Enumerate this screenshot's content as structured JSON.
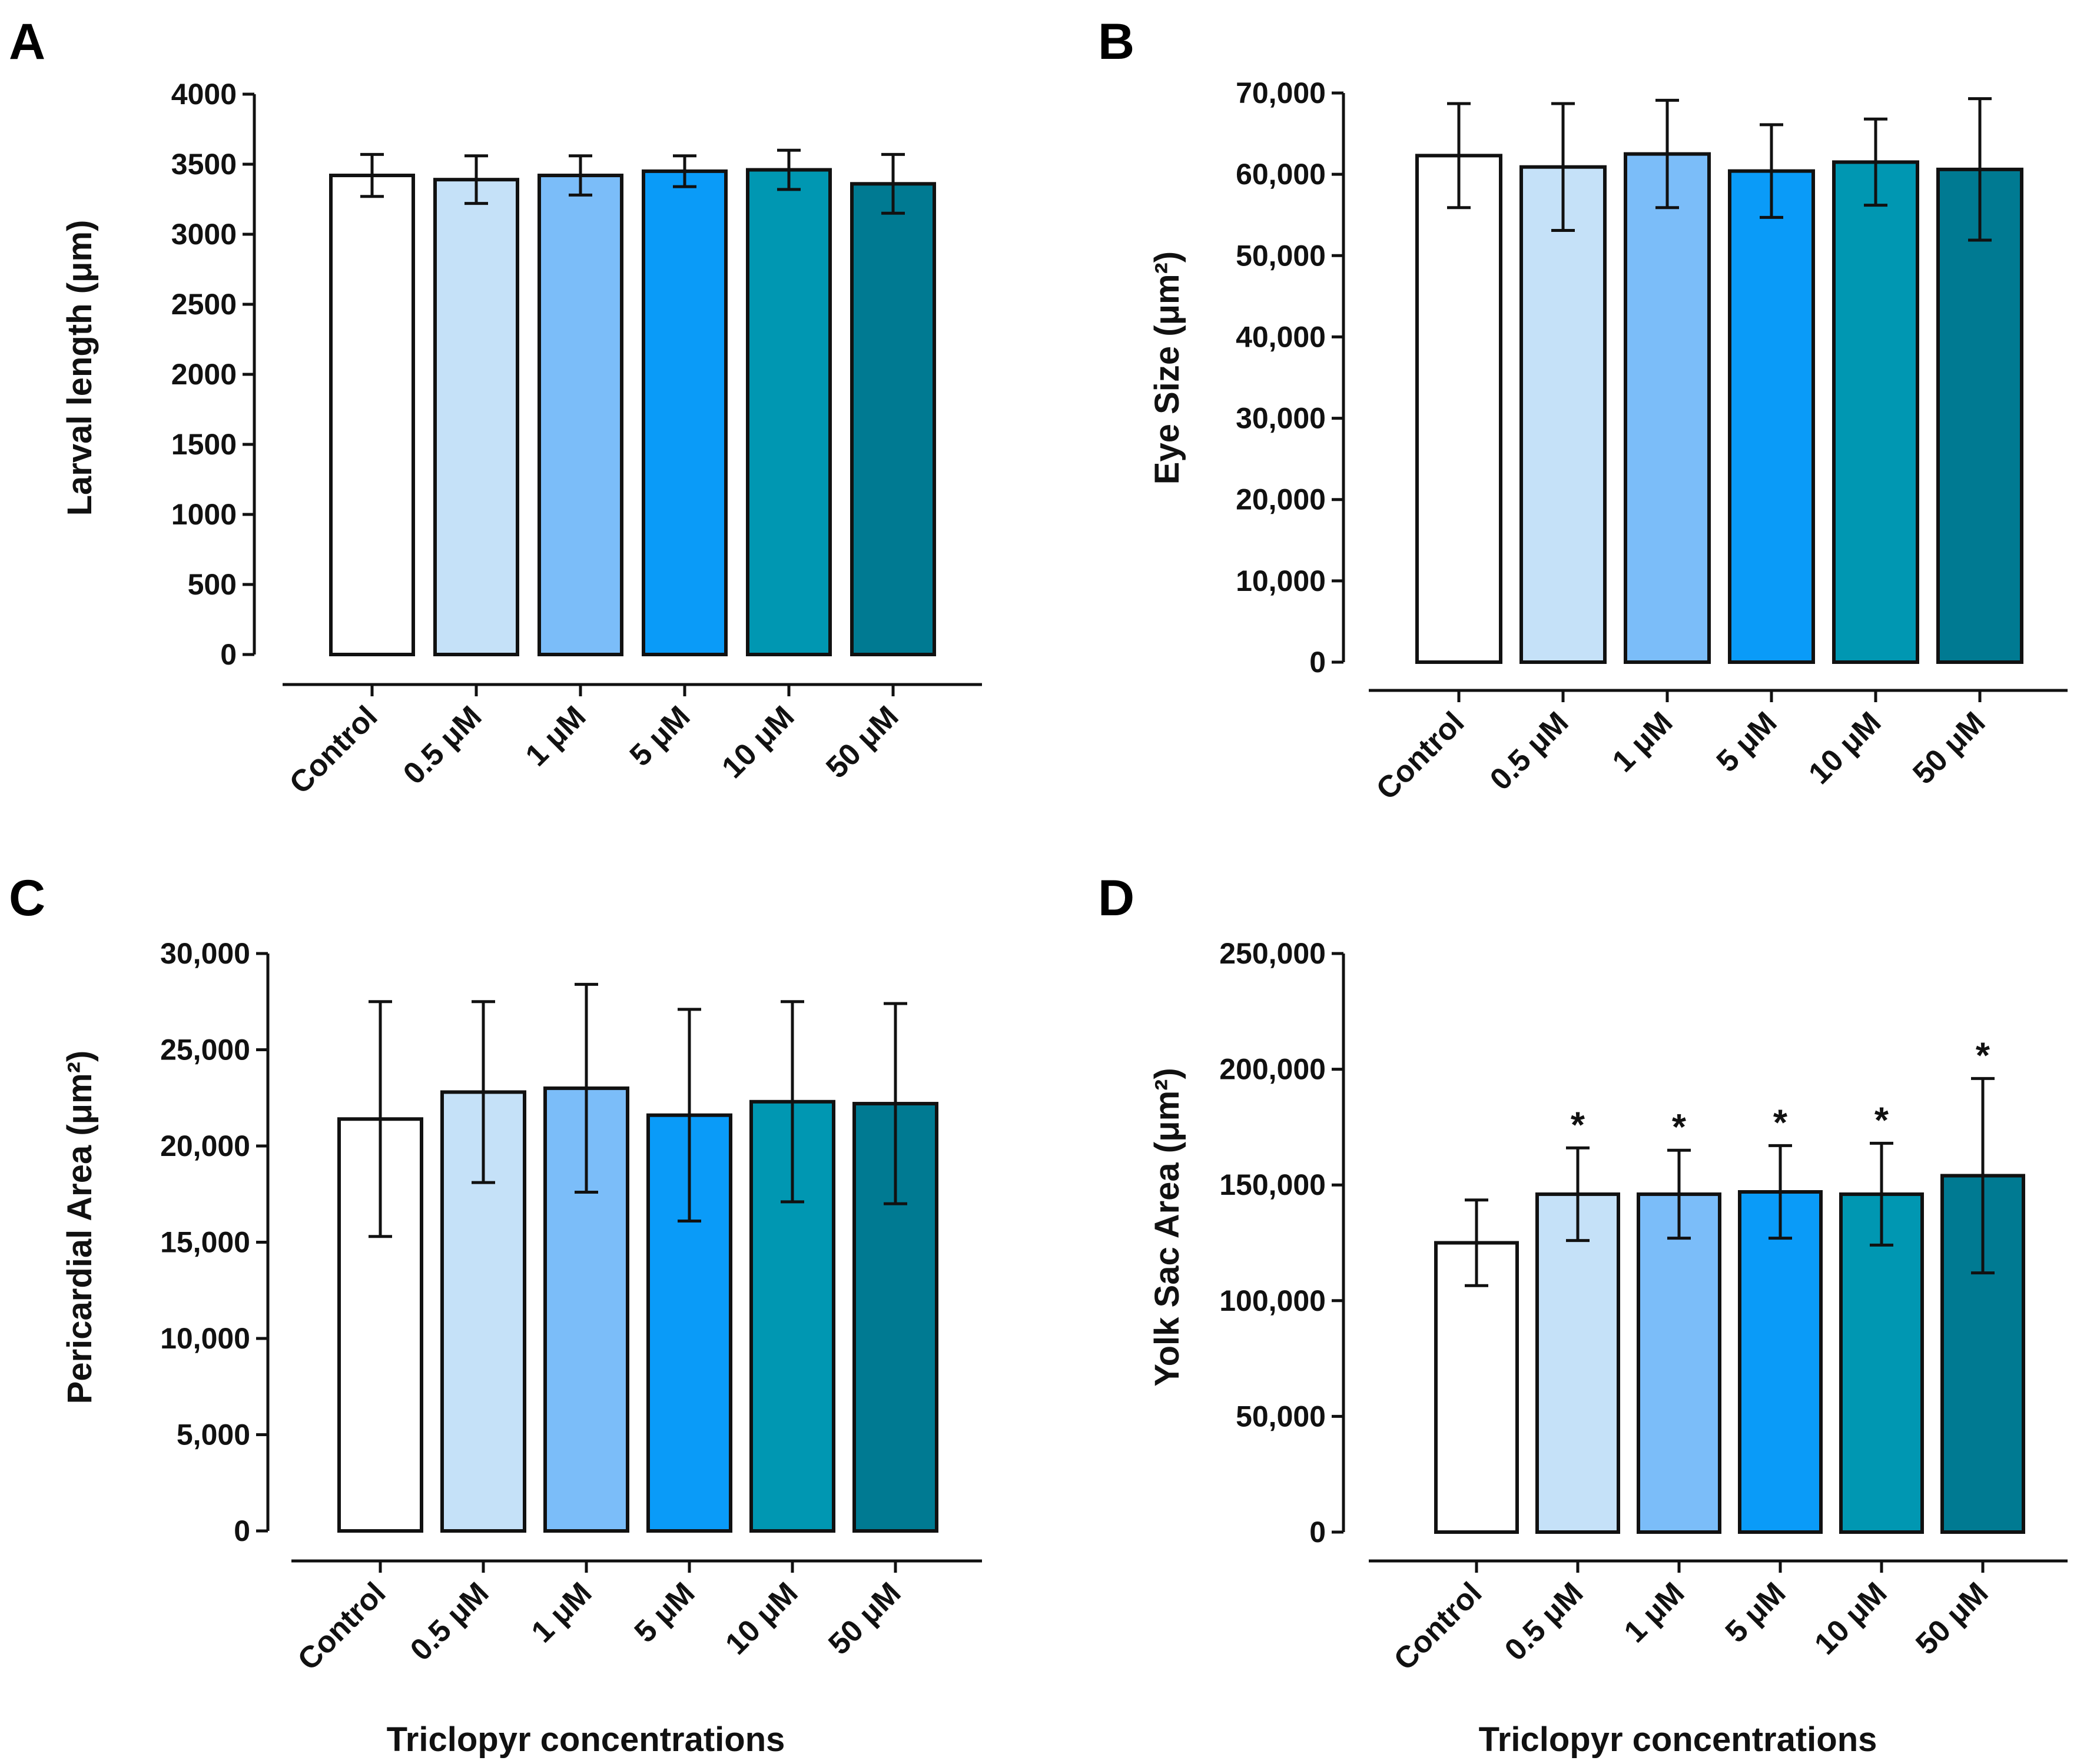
{
  "figure": {
    "x_title": "Triclopyr concentrations",
    "categories": [
      "Control",
      "0.5 μM",
      "1 μM",
      "5 μM",
      "10 μM",
      "50 μM"
    ],
    "colors": [
      "#ffffff",
      "#c5e1f8",
      "#7bbdf9",
      "#0a9bf8",
      "#0097b2",
      "#007a92"
    ]
  },
  "chart_data": [
    {
      "panel": "A",
      "type": "bar",
      "ylabel": "Larval length (μm)",
      "ylim": [
        0,
        4000
      ],
      "yticks": [
        0,
        500,
        1000,
        1500,
        2000,
        2500,
        3000,
        3500,
        4000
      ],
      "ytick_labels": [
        "0",
        "500",
        "1000",
        "1500",
        "2000",
        "2500",
        "3000",
        "3500",
        "4000"
      ],
      "categories": [
        "Control",
        "0.5 μM",
        "1 μM",
        "5 μM",
        "10 μM",
        "50 μM"
      ],
      "values": [
        3420,
        3390,
        3420,
        3450,
        3460,
        3360
      ],
      "errors": [
        150,
        170,
        140,
        110,
        140,
        210
      ],
      "significance": [
        "",
        "",
        "",
        "",
        "",
        ""
      ]
    },
    {
      "panel": "B",
      "type": "bar",
      "ylabel": "Eye Size (μm²)",
      "ylim": [
        0,
        70000
      ],
      "yticks": [
        0,
        10000,
        20000,
        30000,
        40000,
        50000,
        60000,
        70000
      ],
      "ytick_labels": [
        "0",
        "10,000",
        "20,000",
        "30,000",
        "40,000",
        "50,000",
        "60,000",
        "70,000"
      ],
      "categories": [
        "Control",
        "0.5 μM",
        "1 μM",
        "5 μM",
        "10 μM",
        "50 μM"
      ],
      "values": [
        62300,
        60900,
        62500,
        60400,
        61500,
        60600
      ],
      "errors": [
        6400,
        7800,
        6600,
        5700,
        5300,
        8700
      ],
      "significance": [
        "",
        "",
        "",
        "",
        "",
        ""
      ]
    },
    {
      "panel": "C",
      "type": "bar",
      "ylabel": "Pericardial Area (μm²)",
      "ylim": [
        0,
        30000
      ],
      "yticks": [
        0,
        5000,
        10000,
        15000,
        20000,
        25000,
        30000
      ],
      "ytick_labels": [
        "0",
        "5,000",
        "10,000",
        "15,000",
        "20,000",
        "25,000",
        "30,000"
      ],
      "categories": [
        "Control",
        "0.5 μM",
        "1 μM",
        "5 μM",
        "10 μM",
        "50 μM"
      ],
      "values": [
        21400,
        22800,
        23000,
        21600,
        22300,
        22200
      ],
      "errors": [
        6100,
        4700,
        5400,
        5500,
        5200,
        5200
      ],
      "significance": [
        "",
        "",
        "",
        "",
        "",
        ""
      ]
    },
    {
      "panel": "D",
      "type": "bar",
      "ylabel": "Yolk Sac Area (μm²)",
      "ylim": [
        0,
        250000
      ],
      "yticks": [
        0,
        50000,
        100000,
        150000,
        200000,
        250000
      ],
      "ytick_labels": [
        "0",
        "50,000",
        "100,000",
        "150,000",
        "200,000",
        "250,000"
      ],
      "categories": [
        "Control",
        "0.5 μM",
        "1 μM",
        "5 μM",
        "10 μM",
        "50 μM"
      ],
      "values": [
        125000,
        146000,
        146000,
        147000,
        146000,
        154000
      ],
      "errors": [
        18500,
        20000,
        19000,
        20000,
        22000,
        42000
      ],
      "significance": [
        "",
        "*",
        "*",
        "*",
        "*",
        "*"
      ]
    }
  ]
}
